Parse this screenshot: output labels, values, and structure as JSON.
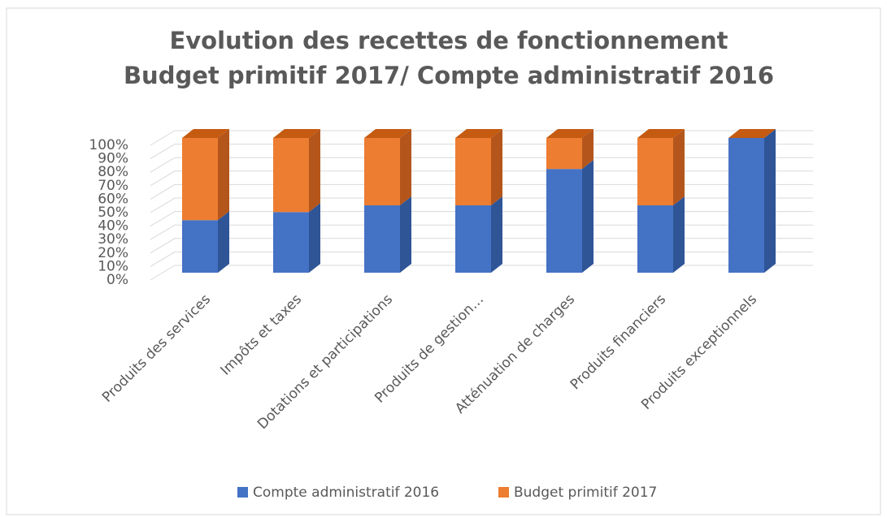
{
  "chart_data": {
    "type": "bar",
    "stacked": true,
    "title": [
      "Evolution des recettes de fonctionnement",
      "Budget primitif 2017/ Compte administratif 2016"
    ],
    "categories": [
      "Produits des services",
      "Impôts et taxes",
      "Dotations et participations",
      "Produits de gestion…",
      "Atténuation de charges",
      "Produits financiers",
      "Produits exceptionnels"
    ],
    "series": [
      {
        "name": "Compte administratif 2016",
        "color": "#4472c4",
        "side": "#2f5597",
        "values": [
          39,
          45,
          50,
          50,
          77,
          50,
          100
        ]
      },
      {
        "name": "Budget primitif 2017",
        "color": "#ed7d31",
        "side": "#b4561c",
        "values": [
          61,
          55,
          50,
          50,
          23,
          50,
          0
        ]
      }
    ],
    "ylim": [
      0,
      100
    ],
    "yticks": [
      {
        "value": 0,
        "label": "0%"
      },
      {
        "value": 10,
        "label": "10%"
      },
      {
        "value": 20,
        "label": "20%"
      },
      {
        "value": 30,
        "label": "30%"
      },
      {
        "value": 40,
        "label": "40%"
      },
      {
        "value": 50,
        "label": "50%"
      },
      {
        "value": 60,
        "label": "60%"
      },
      {
        "value": 70,
        "label": "70%"
      },
      {
        "value": 80,
        "label": "80%"
      },
      {
        "value": 90,
        "label": "90%"
      },
      {
        "value": 100,
        "label": "100%"
      }
    ],
    "grid": true,
    "legend": "bottom"
  }
}
